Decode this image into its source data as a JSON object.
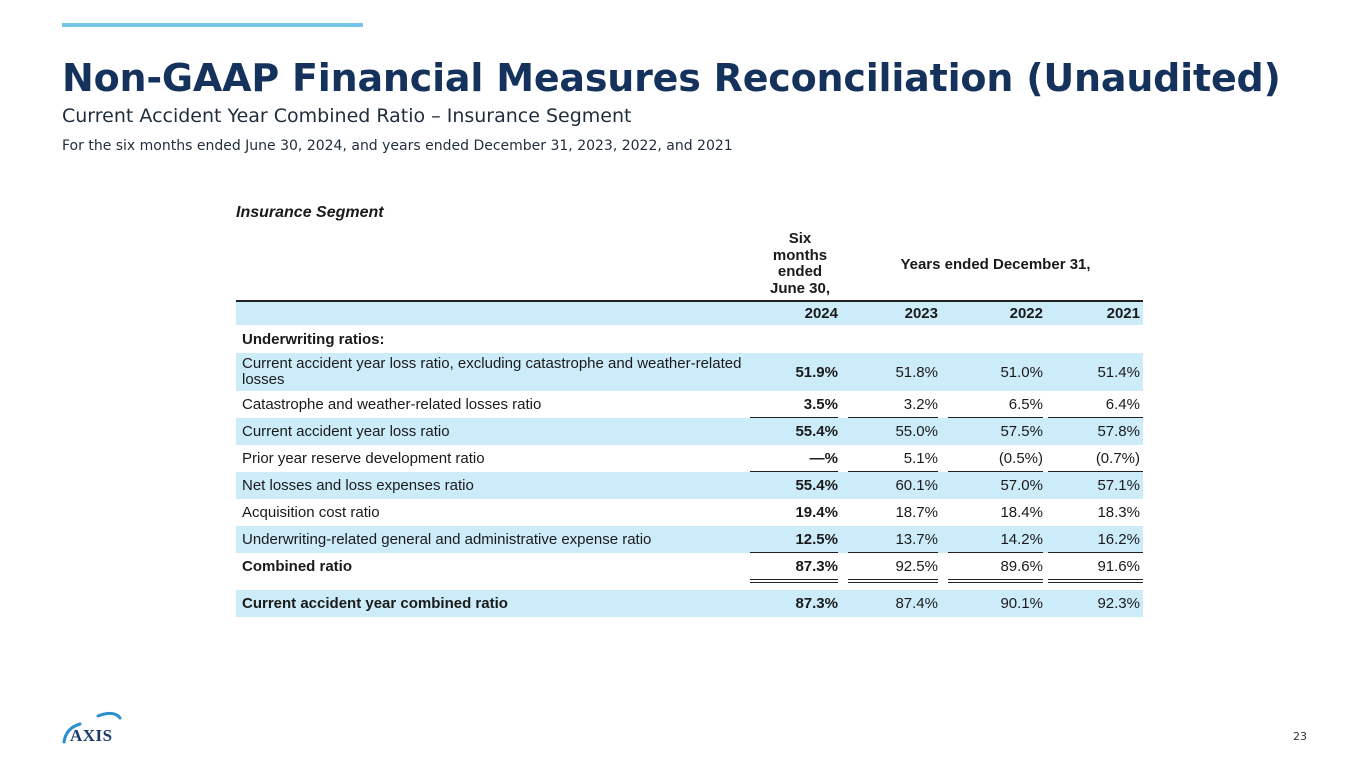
{
  "header": {
    "title": "Non-GAAP Financial Measures Reconciliation (Unaudited)",
    "subtitle": "Current Accident Year Combined Ratio – Insurance Segment",
    "period": "For the six months ended June 30, 2024, and years ended December 31, 2023, 2022, and 2021"
  },
  "table": {
    "segment_title": "Insurance Segment",
    "six_months_header": [
      "Six",
      "months",
      "ended",
      "June 30,"
    ],
    "years_header": "Years ended December 31,",
    "years": [
      "2024",
      "2023",
      "2022",
      "2021"
    ],
    "section_label": "Underwriting ratios:",
    "rows": [
      {
        "label": "Current accident year loss ratio, excluding catastrophe and weather-related losses",
        "values": [
          "51.9%",
          "51.8%",
          "51.0%",
          "51.4%"
        ]
      },
      {
        "label": "Catastrophe and weather-related losses ratio",
        "values": [
          "3.5%",
          "3.2%",
          "6.5%",
          "6.4%"
        ]
      },
      {
        "label": "Current accident year loss ratio",
        "values": [
          "55.4%",
          "55.0%",
          "57.5%",
          "57.8%"
        ]
      },
      {
        "label": "Prior year reserve development ratio",
        "values": [
          "—%",
          "5.1%",
          "(0.5%)",
          "(0.7%)"
        ]
      },
      {
        "label": "Net losses and loss expenses ratio",
        "values": [
          "55.4%",
          "60.1%",
          "57.0%",
          "57.1%"
        ]
      },
      {
        "label": "Acquisition cost ratio",
        "values": [
          "19.4%",
          "18.7%",
          "18.4%",
          "18.3%"
        ]
      },
      {
        "label": "Underwriting-related general and administrative expense ratio",
        "values": [
          "12.5%",
          "13.7%",
          "14.2%",
          "16.2%"
        ]
      },
      {
        "label": "Combined ratio",
        "values": [
          "87.3%",
          "92.5%",
          "89.6%",
          "91.6%"
        ]
      },
      {
        "label": "Current accident year combined ratio",
        "values": [
          "87.3%",
          "87.4%",
          "90.1%",
          "92.3%"
        ]
      }
    ]
  },
  "footer": {
    "logo_text": "AXIS",
    "page_number": "23"
  },
  "colors": {
    "title": "#15325c",
    "accent_bar": "#74c3e9",
    "row_shade": "#cdecfa"
  }
}
